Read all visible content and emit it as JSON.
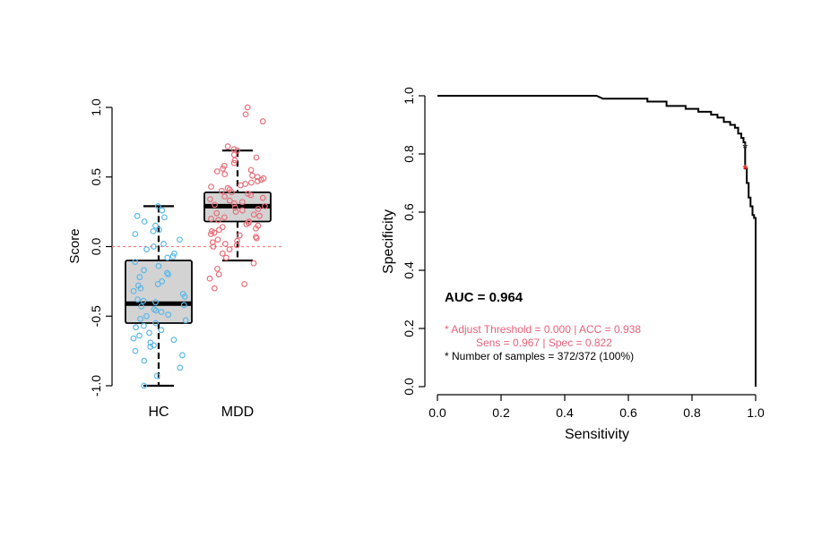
{
  "chart_data": [
    {
      "type": "box",
      "ylabel": "Score",
      "ylim": [
        -1.0,
        1.0
      ],
      "yticks": [
        "-1.0",
        "-0.5",
        "0.0",
        "0.5",
        "1.0"
      ],
      "categories": [
        "HC",
        "MDD"
      ],
      "reference_line": 0.0,
      "boxes": [
        {
          "name": "HC",
          "whisker_low": -1.0,
          "q1": -0.55,
          "median": -0.41,
          "q3": -0.1,
          "whisker_high": 0.29,
          "point_color": "#5BB8E8"
        },
        {
          "name": "MDD",
          "whisker_low": -0.1,
          "q1": 0.18,
          "median": 0.29,
          "q3": 0.39,
          "whisker_high": 0.69,
          "point_color": "#E8707A"
        }
      ],
      "points": {
        "HC": [
          0.29,
          0.26,
          0.22,
          0.18,
          0.15,
          0.12,
          0.09,
          0.05,
          0.02,
          0.0,
          -0.02,
          -0.05,
          -0.08,
          -0.11,
          -0.14,
          -0.17,
          -0.2,
          -0.22,
          -0.25,
          -0.27,
          -0.3,
          -0.32,
          -0.34,
          -0.36,
          -0.38,
          -0.4,
          -0.42,
          -0.43,
          -0.45,
          -0.47,
          -0.49,
          -0.5,
          -0.52,
          -0.53,
          -0.55,
          -0.57,
          -0.6,
          -0.62,
          -0.64,
          -0.67,
          -0.69,
          -0.72,
          -0.75,
          -0.78,
          -0.82,
          -0.87,
          -0.93,
          -1.0,
          0.21,
          0.11,
          -0.07,
          -0.19,
          -0.28,
          -0.39,
          -0.46,
          -0.58,
          -0.66,
          -0.71
        ],
        "MDD": [
          1.0,
          0.95,
          0.9,
          0.72,
          0.7,
          0.69,
          0.66,
          0.64,
          0.62,
          0.6,
          0.58,
          0.56,
          0.55,
          0.54,
          0.52,
          0.51,
          0.5,
          0.49,
          0.48,
          0.47,
          0.46,
          0.45,
          0.44,
          0.43,
          0.42,
          0.41,
          0.4,
          0.39,
          0.38,
          0.37,
          0.36,
          0.35,
          0.34,
          0.33,
          0.32,
          0.31,
          0.3,
          0.29,
          0.28,
          0.27,
          0.26,
          0.25,
          0.24,
          0.23,
          0.22,
          0.21,
          0.2,
          0.19,
          0.18,
          0.17,
          0.16,
          0.15,
          0.14,
          0.13,
          0.12,
          0.11,
          0.1,
          0.09,
          0.08,
          0.07,
          0.06,
          0.05,
          0.04,
          0.03,
          0.02,
          0.01,
          0.0,
          -0.02,
          -0.05,
          -0.08,
          -0.12,
          -0.16,
          -0.2,
          -0.23,
          -0.27,
          -0.3
        ]
      }
    },
    {
      "type": "line",
      "xlabel": "Sensitivity",
      "ylabel": "Specificity",
      "xlim": [
        0.0,
        1.0
      ],
      "ylim": [
        0.0,
        1.0
      ],
      "xticks": [
        "0.0",
        "0.2",
        "0.4",
        "0.6",
        "0.8",
        "1.0"
      ],
      "yticks": [
        "0.0",
        "0.2",
        "0.4",
        "0.6",
        "0.8",
        "1.0"
      ],
      "roc_curve": [
        [
          0.0,
          1.0
        ],
        [
          0.5,
          1.0
        ],
        [
          0.52,
          0.99
        ],
        [
          0.66,
          0.99
        ],
        [
          0.66,
          0.98
        ],
        [
          0.72,
          0.98
        ],
        [
          0.72,
          0.965
        ],
        [
          0.78,
          0.965
        ],
        [
          0.78,
          0.955
        ],
        [
          0.82,
          0.955
        ],
        [
          0.82,
          0.945
        ],
        [
          0.86,
          0.945
        ],
        [
          0.86,
          0.935
        ],
        [
          0.88,
          0.935
        ],
        [
          0.88,
          0.925
        ],
        [
          0.9,
          0.925
        ],
        [
          0.9,
          0.91
        ],
        [
          0.92,
          0.91
        ],
        [
          0.92,
          0.9
        ],
        [
          0.935,
          0.9
        ],
        [
          0.935,
          0.89
        ],
        [
          0.945,
          0.89
        ],
        [
          0.945,
          0.87
        ],
        [
          0.955,
          0.87
        ],
        [
          0.955,
          0.855
        ],
        [
          0.962,
          0.855
        ],
        [
          0.962,
          0.84
        ],
        [
          0.967,
          0.84
        ],
        [
          0.967,
          0.822
        ],
        [
          0.967,
          0.75
        ],
        [
          0.972,
          0.75
        ],
        [
          0.972,
          0.7
        ],
        [
          0.978,
          0.7
        ],
        [
          0.978,
          0.65
        ],
        [
          0.984,
          0.65
        ],
        [
          0.984,
          0.62
        ],
        [
          0.99,
          0.62
        ],
        [
          0.99,
          0.59
        ],
        [
          0.995,
          0.59
        ],
        [
          0.995,
          0.58
        ],
        [
          1.0,
          0.58
        ],
        [
          1.0,
          0.0
        ]
      ],
      "marked_points": [
        {
          "x": 0.967,
          "y": 0.822,
          "color": "#333333"
        },
        {
          "x": 0.967,
          "y": 0.75,
          "color": "#FF2A2A"
        }
      ],
      "annotations": {
        "auc": "AUC = 0.964",
        "line1": "* Adjust Threshold = 0.000 | ACC = 0.938",
        "line2": "Sens = 0.967 | Spec = 0.822",
        "line3": "* Number of samples = 372/372 (100%)"
      },
      "colors": {
        "annotation_highlight": "#E8607A",
        "curve": "#000000"
      }
    }
  ]
}
